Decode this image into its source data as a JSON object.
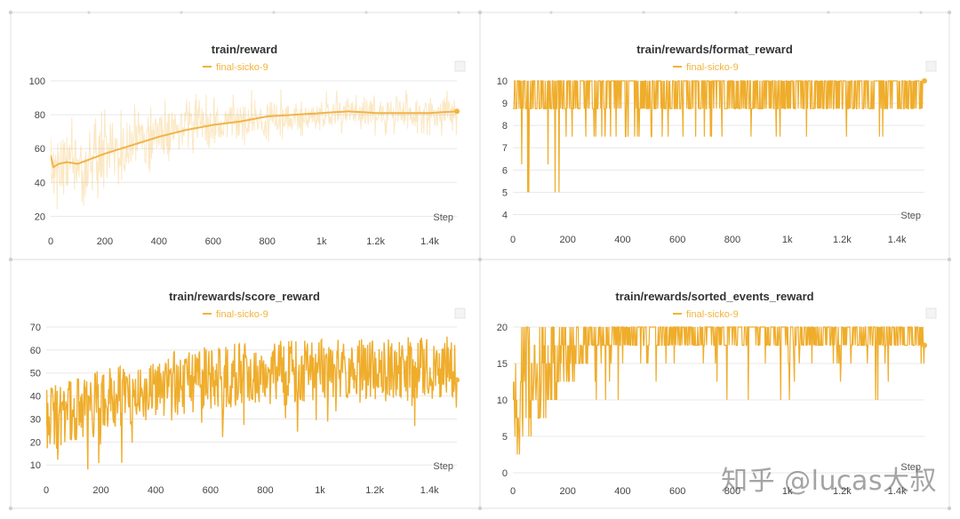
{
  "style": {
    "accent": "#f2b43a",
    "raw_line": "#efad2c",
    "smooth_line": "#f0b447",
    "grid": "#e8e8e8",
    "axis_text": "#444444"
  },
  "watermark": {
    "text": "知乎 @lucas大叔"
  },
  "chart_data": [
    {
      "type": "line",
      "title": "train/reward",
      "legend": "final-sicko-9",
      "xlabel": "Step",
      "xlim": [
        0,
        1500
      ],
      "ylim": [
        16,
        100
      ],
      "yticks": [
        20,
        40,
        60,
        80,
        100
      ],
      "xticks": [
        0,
        200,
        400,
        600,
        800,
        1000,
        1200,
        1400
      ],
      "xtick_labels": [
        "0",
        "200",
        "400",
        "600",
        "800",
        "1k",
        "1.2k",
        "1.4k"
      ],
      "raw_faded": true,
      "smoothed": {
        "x": [
          0,
          10,
          30,
          60,
          100,
          150,
          200,
          300,
          400,
          500,
          600,
          700,
          800,
          900,
          1000,
          1100,
          1200,
          1300,
          1400,
          1500
        ],
        "y": [
          56,
          49,
          51,
          52,
          51,
          54,
          57,
          62,
          67,
          71,
          74,
          76,
          79,
          80,
          81,
          82,
          81,
          81,
          81,
          82
        ]
      },
      "noise": {
        "amp": [
          30,
          28,
          24,
          20,
          18,
          16,
          14,
          14,
          14,
          14
        ],
        "min": 16,
        "max": 98
      }
    },
    {
      "type": "line",
      "title": "train/rewards/format_reward",
      "legend": "final-sicko-9",
      "xlabel": "Step",
      "xlim": [
        0,
        1500
      ],
      "ylim": [
        3.7,
        10
      ],
      "yticks": [
        4,
        5,
        6,
        7,
        8,
        9,
        10
      ],
      "xticks": [
        0,
        200,
        400,
        600,
        800,
        1000,
        1200,
        1400
      ],
      "xtick_labels": [
        "0",
        "200",
        "400",
        "600",
        "800",
        "1k",
        "1.2k",
        "1.4k"
      ],
      "levels": [
        10,
        8.75,
        7.5,
        6.25,
        5
      ],
      "series_end": 10
    },
    {
      "type": "line",
      "title": "train/rewards/score_reward",
      "legend": "final-sicko-9",
      "xlabel": "Step",
      "xlim": [
        0,
        1500
      ],
      "ylim": [
        7,
        70
      ],
      "yticks": [
        10,
        20,
        30,
        40,
        50,
        60,
        70
      ],
      "xticks": [
        0,
        200,
        400,
        600,
        800,
        1000,
        1200,
        1400
      ],
      "xtick_labels": [
        "0",
        "200",
        "400",
        "600",
        "800",
        "1k",
        "1.2k",
        "1.4k"
      ],
      "trend": {
        "x": [
          0,
          100,
          200,
          400,
          600,
          800,
          1000,
          1200,
          1400,
          1500
        ],
        "y": [
          30,
          33,
          38,
          44,
          48,
          50,
          51,
          51,
          52,
          52
        ]
      },
      "series_end": 47
    },
    {
      "type": "line",
      "title": "train/rewards/sorted_events_reward",
      "legend": "final-sicko-9",
      "xlabel": "Step",
      "xlim": [
        0,
        1500
      ],
      "ylim": [
        0,
        20
      ],
      "yticks": [
        0,
        5,
        10,
        15,
        20
      ],
      "xticks": [
        0,
        200,
        400,
        600,
        800,
        1000,
        1200,
        1400
      ],
      "xtick_labels": [
        "0",
        "200",
        "400",
        "600",
        "800",
        "1k",
        "1.2k",
        "1.4k"
      ],
      "levels": [
        20,
        17.5,
        15,
        12.5,
        10,
        7.5,
        5,
        2.5,
        0
      ],
      "series_end": 17.5
    }
  ]
}
